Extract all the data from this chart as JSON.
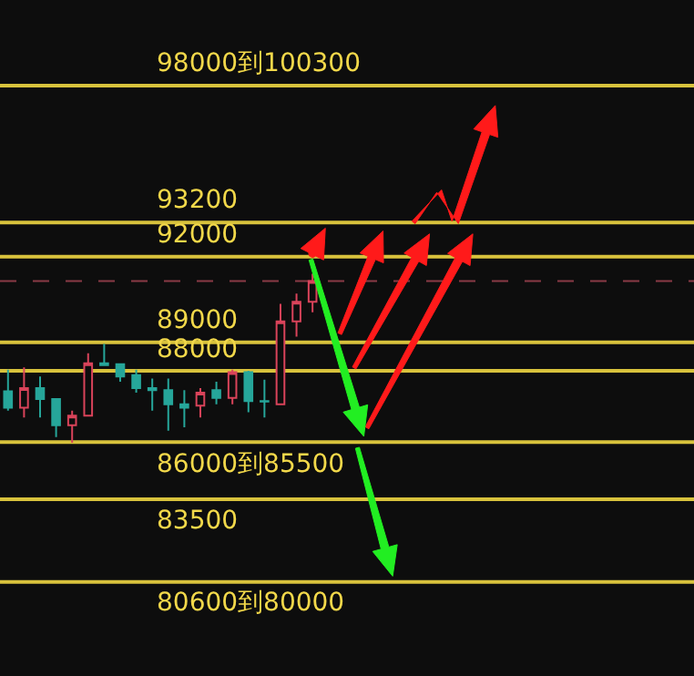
{
  "chart_data": {
    "type": "candlestick",
    "tick_labels": false,
    "ylim": [
      77300,
      101000
    ],
    "categories": [
      null,
      null,
      null,
      null,
      null,
      null,
      null,
      null,
      null,
      null,
      null,
      null,
      null,
      null,
      null,
      null,
      null,
      null,
      null,
      null
    ],
    "ohlc": [
      [
        87280,
        88040,
        86600,
        86710
      ],
      [
        86710,
        88120,
        86360,
        87390
      ],
      [
        87390,
        87800,
        86360,
        87010
      ],
      [
        87010,
        87010,
        85680,
        86090
      ],
      [
        86090,
        86600,
        85480,
        86425
      ],
      [
        86425,
        88614,
        86400,
        88260
      ],
      [
        88260,
        88944,
        88200,
        88200
      ],
      [
        88230,
        88230,
        87620,
        87800
      ],
      [
        87845,
        88040,
        87235,
        87390
      ],
      [
        87390,
        87730,
        86600,
        87320
      ],
      [
        87320,
        87730,
        85900,
        86830
      ],
      [
        86830,
        87320,
        86020,
        86710
      ],
      [
        86780,
        87390,
        86360,
        87235
      ],
      [
        87320,
        87620,
        86830,
        87050
      ],
      [
        87050,
        88040,
        86830,
        87955
      ],
      [
        87955,
        88000,
        86550,
        86940
      ],
      [
        86940,
        87685,
        86360,
        86920
      ],
      [
        86830,
        90350,
        86830,
        89730
      ],
      [
        89730,
        90710,
        89200,
        90420
      ],
      [
        90420,
        91400,
        90050,
        91150
      ]
    ],
    "colors": [
      "#26a69a",
      "#d9435a",
      "#26a69a",
      "#26a69a",
      "#d9435a",
      "#d9435a",
      "#26a69a",
      "#26a69a",
      "#26a69a",
      "#26a69a",
      "#26a69a",
      "#26a69a",
      "#d9435a",
      "#26a69a",
      "#d9435a",
      "#26a69a",
      "#26a69a",
      "#d9435a",
      "#d9435a",
      "#d9435a"
    ],
    "ref_lines": [
      {
        "axis": "y",
        "value": 98000,
        "label": "98000到100300",
        "color": "#d8c23c"
      },
      {
        "axis": "y",
        "value": 93200,
        "label": "93200",
        "color": "#d8c23c"
      },
      {
        "axis": "y",
        "value": 92000,
        "label": "92000",
        "color": "#d8c23c"
      },
      {
        "axis": "y",
        "value": 89000,
        "label": "89000",
        "color": "#d8c23c"
      },
      {
        "axis": "y",
        "value": 88000,
        "label": "88000",
        "color": "#d8c23c"
      },
      {
        "axis": "y",
        "value": 85500,
        "label": "86000到85500",
        "color": "#d8c23c"
      },
      {
        "axis": "y",
        "value": 83500,
        "label": "83500",
        "color": "#d8c23c"
      },
      {
        "axis": "y",
        "value": 80600,
        "label": "80600到80000",
        "color": "#d8c23c"
      },
      {
        "axis": "y",
        "value": 91150,
        "color": "#8a3a46",
        "line_style": "dashed"
      }
    ]
  }
}
